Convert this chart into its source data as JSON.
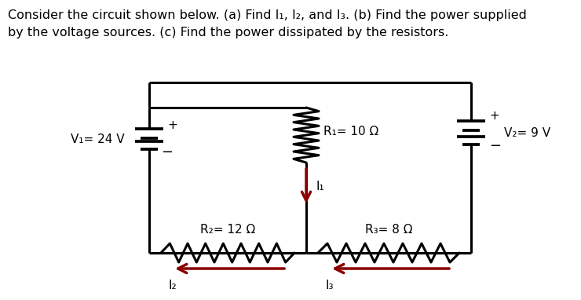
{
  "background_color": "#ffffff",
  "text_color": "#000000",
  "title_line1": "Consider the circuit shown below. (a) Find I₁, I₂, and I₃. (b) Find the power supplied",
  "title_line2": "by the voltage sources. (c) Find the power dissipated by the resistors.",
  "V1_label": "V₁= 24 V",
  "V2_label": "V₂= 9 V",
  "R1_label": "R₁= 10 Ω",
  "R2_label": "R₂= 12 Ω",
  "R3_label": "R₃= 8 Ω",
  "I1_label": "I₁",
  "I2_label": "I₂",
  "I3_label": "I₃",
  "wire_color": "#000000",
  "wire_lw": 2.2,
  "arrow_color": "#8B0000",
  "component_lw": 2.2,
  "title_fontsize": 11.5
}
